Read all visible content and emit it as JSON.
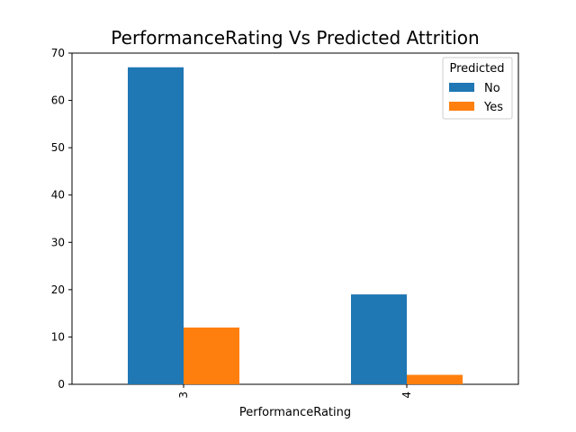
{
  "chart_data": {
    "type": "bar",
    "title": "PerformanceRating Vs Predicted Attrition",
    "xlabel": "PerformanceRating",
    "ylabel": "",
    "categories": [
      "3",
      "4"
    ],
    "series": [
      {
        "name": "No",
        "values": [
          67,
          19
        ],
        "color": "#1f77b4"
      },
      {
        "name": "Yes",
        "values": [
          12,
          2
        ],
        "color": "#ff7f0e"
      }
    ],
    "ylim": [
      0,
      70
    ],
    "yticks": [
      0,
      10,
      20,
      30,
      40,
      50,
      60,
      70
    ],
    "legend": {
      "title": "Predicted",
      "placement": "top-right"
    },
    "grid": false
  }
}
